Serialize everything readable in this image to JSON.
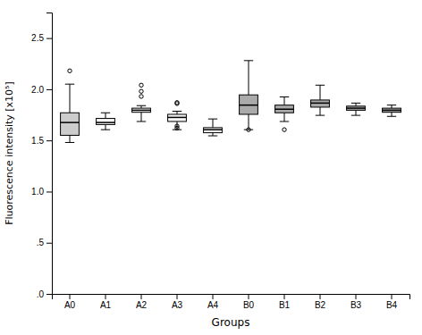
{
  "chart_data": {
    "type": "box",
    "xlabel": "Groups",
    "ylabel": "Fluorescence intensity [x10⁵]",
    "categories": [
      "A0",
      "A1",
      "A2",
      "A3",
      "A4",
      "B0",
      "B1",
      "B2",
      "B3",
      "B4"
    ],
    "colors": [
      "#cccccc",
      "#f5f5f5",
      "#f5f5f5",
      "#f5f5f5",
      "#f5f5f5",
      "#aaaaaa",
      "#aaaaaa",
      "#aaaaaa",
      "#aaaaaa",
      "#aaaaaa"
    ],
    "boxes": [
      {
        "q1": 1.55,
        "median": 1.675,
        "q3": 1.77,
        "whislo": 1.48,
        "whishi": 2.05,
        "fliers": [
          2.18
        ]
      },
      {
        "q1": 1.655,
        "median": 1.675,
        "q3": 1.715,
        "whislo": 1.605,
        "whishi": 1.77,
        "fliers": []
      },
      {
        "q1": 1.775,
        "median": 1.795,
        "q3": 1.815,
        "whislo": 1.685,
        "whishi": 1.84,
        "fliers": [
          1.93,
          1.98,
          2.04
        ]
      },
      {
        "q1": 1.685,
        "median": 1.725,
        "q3": 1.755,
        "whislo": 1.605,
        "whishi": 1.785,
        "fliers": [
          1.62,
          1.64,
          1.86,
          1.87
        ]
      },
      {
        "q1": 1.575,
        "median": 1.605,
        "q3": 1.625,
        "whislo": 1.545,
        "whishi": 1.71,
        "fliers": []
      },
      {
        "q1": 1.755,
        "median": 1.845,
        "q3": 1.945,
        "whislo": 1.605,
        "whishi": 2.28,
        "fliers": [
          1.605
        ]
      },
      {
        "q1": 1.77,
        "median": 1.805,
        "q3": 1.845,
        "whislo": 1.685,
        "whishi": 1.925,
        "fliers": [
          1.605
        ]
      },
      {
        "q1": 1.825,
        "median": 1.865,
        "q3": 1.895,
        "whislo": 1.745,
        "whishi": 2.04,
        "fliers": []
      },
      {
        "q1": 1.795,
        "median": 1.815,
        "q3": 1.835,
        "whislo": 1.745,
        "whishi": 1.865,
        "fliers": []
      },
      {
        "q1": 1.775,
        "median": 1.795,
        "q3": 1.815,
        "whislo": 1.735,
        "whishi": 1.845,
        "fliers": []
      }
    ],
    "ylim": [
      0.0,
      2.75
    ],
    "yticks": [
      {
        "value": 0.0,
        "label": ".0"
      },
      {
        "value": 0.5,
        "label": ".5"
      },
      {
        "value": 1.0,
        "label": "1.0"
      },
      1.5,
      {
        "value": 2.0,
        "label": "2.0"
      },
      2.5
    ],
    "grid": false
  }
}
